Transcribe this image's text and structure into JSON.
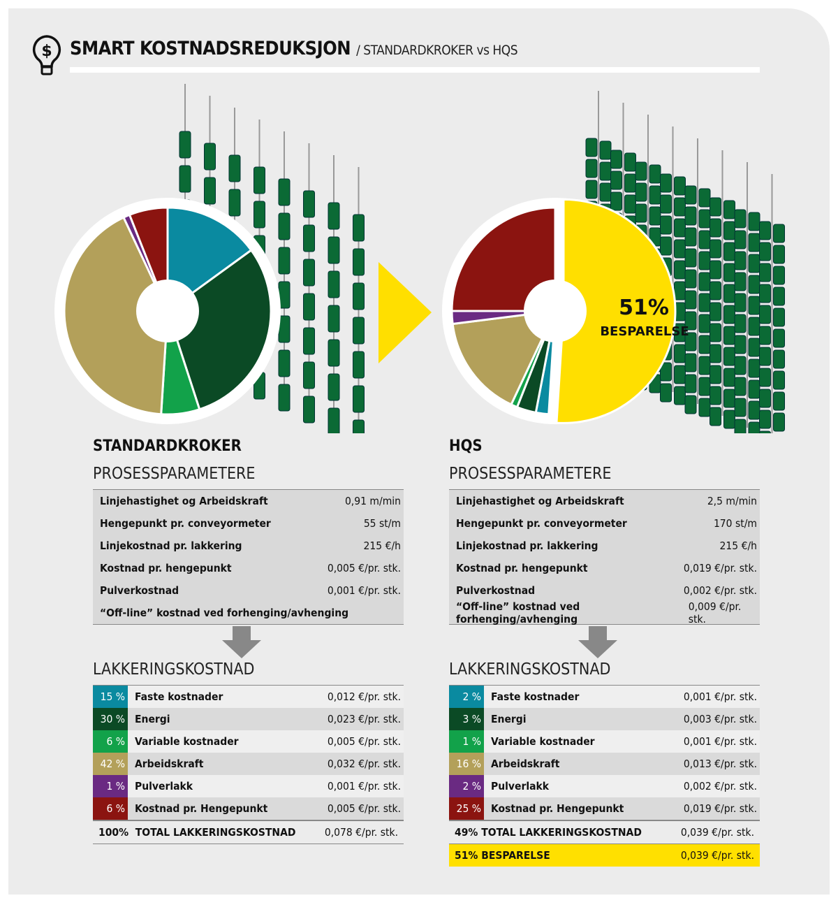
{
  "header": {
    "title": "SMART KOSTNADSREDUKSJON",
    "subtitle": "/ STANDARDKROKER vs HQS",
    "icon": "lightbulb-dollar-icon"
  },
  "colors": {
    "teal": "#0a8aa0",
    "darkgreen": "#0b4a25",
    "green": "#12a24a",
    "khaki": "#b3a05a",
    "purple": "#6a2a82",
    "red": "#8b1410",
    "yellow": "#ffdf00"
  },
  "chart_data": [
    {
      "type": "pie",
      "title": "STANDARDKROKER",
      "donut": true,
      "categories": [
        "Faste kostnader",
        "Energi",
        "Variable kostnader",
        "Arbeidskraft",
        "Pulverlakk",
        "Kostnad pr. Hengepunkt"
      ],
      "values": [
        15,
        30,
        6,
        42,
        1,
        6
      ],
      "colors": [
        "#0a8aa0",
        "#0b4a25",
        "#12a24a",
        "#b3a05a",
        "#6a2a82",
        "#8b1410"
      ]
    },
    {
      "type": "pie",
      "title": "HQS",
      "donut": true,
      "categories": [
        "Besparelse",
        "Faste kostnader",
        "Energi",
        "Variable kostnader",
        "Arbeidskraft",
        "Pulverlakk",
        "Kostnad pr. Hengepunkt"
      ],
      "values": [
        51,
        2,
        3,
        1,
        16,
        2,
        25
      ],
      "colors": [
        "#ffdf00",
        "#0a8aa0",
        "#0b4a25",
        "#12a24a",
        "#b3a05a",
        "#6a2a82",
        "#8b1410"
      ],
      "annotation": {
        "value": "51%",
        "label": "BESPARELSE"
      }
    }
  ],
  "left": {
    "title": "STANDARDKROKER",
    "params_title": "PROSESSPARAMETERE",
    "params": [
      {
        "l": "Linjehastighet og Arbeidskraft",
        "v": "0,91 m/min"
      },
      {
        "l": "Hengepunkt pr. conveyormeter",
        "v": "55 st/m"
      },
      {
        "l": "Linjekostnad pr. lakkering",
        "v": "215 €/h"
      },
      {
        "l": "Kostnad pr. hengepunkt",
        "v": "0,005 €/pr. stk."
      },
      {
        "l": "Pulverkostnad",
        "v": "0,001 €/pr. stk."
      },
      {
        "l": "“Off-line” kostnad ved forhenging/avhenging",
        "v": ""
      }
    ],
    "cost_title": "LAKKERINGSKOSTNAD",
    "costs": [
      {
        "p": "15 %",
        "l": "Faste kostnader",
        "v": "0,012 €/pr. stk.",
        "c": "#0a8aa0"
      },
      {
        "p": "30 %",
        "l": "Energi",
        "v": "0,023 €/pr. stk.",
        "c": "#0b4a25"
      },
      {
        "p": "6 %",
        "l": "Variable kostnader",
        "v": "0,005 €/pr. stk.",
        "c": "#12a24a"
      },
      {
        "p": "42 %",
        "l": "Arbeidskraft",
        "v": "0,032 €/pr. stk.",
        "c": "#b3a05a"
      },
      {
        "p": "1 %",
        "l": "Pulverlakk",
        "v": "0,001 €/pr. stk.",
        "c": "#6a2a82"
      },
      {
        "p": "6 %",
        "l": "Kostnad pr. Hengepunkt",
        "v": "0,005 €/pr. stk.",
        "c": "#8b1410"
      }
    ],
    "total": {
      "l": "100%  TOTAL LAKKERINGSKOSTNAD",
      "v": "0,078 €/pr. stk."
    }
  },
  "right": {
    "title": "HQS",
    "params_title": "PROSESSPARAMETERE",
    "params": [
      {
        "l": "Linjehastighet og Arbeidskraft",
        "v": "2,5 m/min"
      },
      {
        "l": "Hengepunkt pr. conveyormeter",
        "v": "170 st/m"
      },
      {
        "l": "Linjekostnad pr. lakkering",
        "v": "215 €/h"
      },
      {
        "l": "Kostnad pr. hengepunkt",
        "v": "0,019 €/pr. stk."
      },
      {
        "l": "Pulverkostnad",
        "v": "0,002 €/pr. stk."
      },
      {
        "l": "“Off-line” kostnad ved forhenging/avhenging",
        "v": "0,009 €/pr. stk."
      }
    ],
    "cost_title": "LAKKERINGSKOSTNAD",
    "costs": [
      {
        "p": "2 %",
        "l": "Faste kostnader",
        "v": "0,001 €/pr. stk.",
        "c": "#0a8aa0"
      },
      {
        "p": "3 %",
        "l": "Energi",
        "v": "0,003 €/pr. stk.",
        "c": "#0b4a25"
      },
      {
        "p": "1 %",
        "l": "Variable kostnader",
        "v": "0,001 €/pr. stk.",
        "c": "#12a24a"
      },
      {
        "p": "16 %",
        "l": "Arbeidskraft",
        "v": "0,013 €/pr. stk.",
        "c": "#b3a05a"
      },
      {
        "p": "2 %",
        "l": "Pulverlakk",
        "v": "0,002 €/pr. stk.",
        "c": "#6a2a82"
      },
      {
        "p": "25 %",
        "l": "Kostnad pr. Hengepunkt",
        "v": "0,019 €/pr. stk.",
        "c": "#8b1410"
      }
    ],
    "total": {
      "l": "49% TOTAL LAKKERINGSKOSTNAD",
      "v": "0,039 €/pr. stk."
    },
    "saving": {
      "l": "51% BESPARELSE",
      "v": "0,039 €/pr. stk."
    }
  }
}
